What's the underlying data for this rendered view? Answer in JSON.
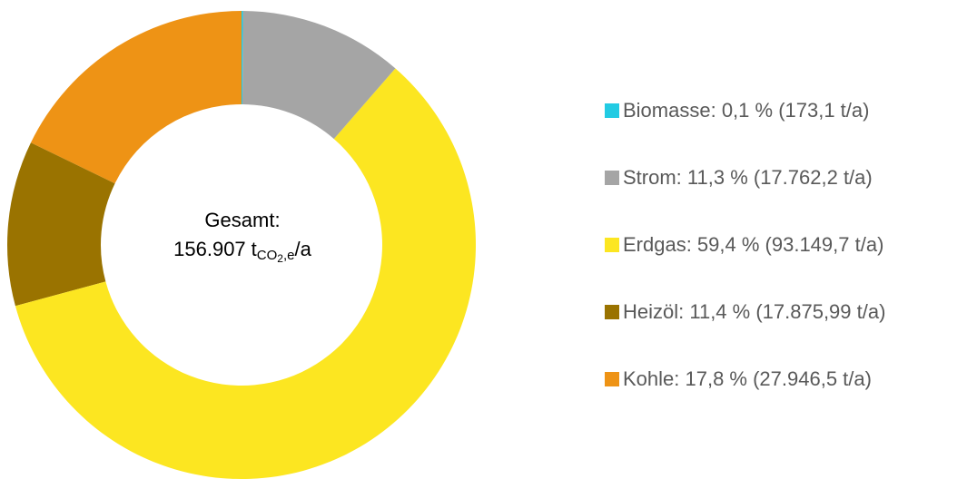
{
  "chart_data": {
    "type": "donut",
    "categories": [
      "Biomasse: 0,1 % (173,1 t/a)",
      "Strom: 11,3 % (17.762,2 t/a)",
      "Erdgas: 59,4 % (93.149,7 t/a)",
      "Heizöl: 11,4 % (17.875,99 t/a)",
      "Kohle: 17,8 % (27.946,5 t/a)"
    ],
    "values": [
      0.1,
      11.3,
      59.4,
      11.4,
      17.8
    ],
    "colors": [
      "#22cbe3",
      "#a5a5a5",
      "#fce621",
      "#9a7300",
      "#ee9315"
    ],
    "legend": "right",
    "center": {
      "title": "Gesamt:",
      "value": 156907,
      "value_label": "156.907",
      "unit": [
        "t",
        "CO",
        "2",
        ",e",
        "/a"
      ]
    }
  }
}
